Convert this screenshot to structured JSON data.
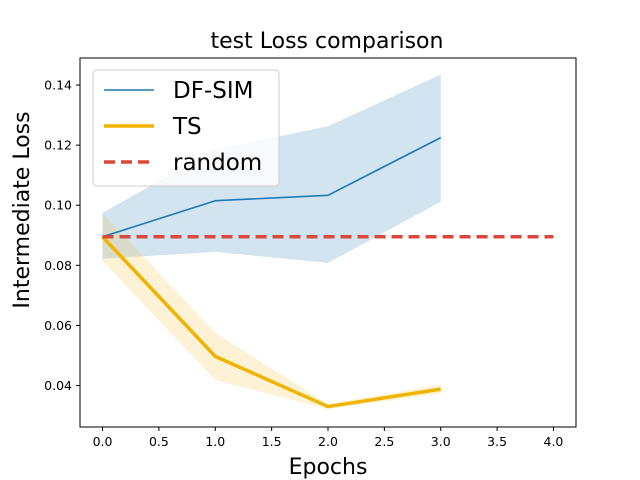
{
  "chart_data": {
    "type": "line",
    "title": "test Loss comparison",
    "xlabel": "Epochs",
    "ylabel": "Intermediate Loss",
    "xlim": [
      -0.2,
      4.2
    ],
    "ylim": [
      0.0262,
      0.149
    ],
    "x_ticks": [
      0.0,
      0.5,
      1.0,
      1.5,
      2.0,
      2.5,
      3.0,
      3.5,
      4.0
    ],
    "x_tick_labels": [
      "0.0",
      "0.5",
      "1.0",
      "1.5",
      "2.0",
      "2.5",
      "3.0",
      "3.5",
      "4.0"
    ],
    "y_ticks": [
      0.04,
      0.06,
      0.08,
      0.1,
      0.12,
      0.14
    ],
    "y_tick_labels": [
      "0.04",
      "0.06",
      "0.08",
      "0.10",
      "0.12",
      "0.14"
    ],
    "grid": false,
    "legend_position": "top-left",
    "series": [
      {
        "name": "DF-SIM",
        "color": "#1f77b4",
        "band_color": "#1f77b4",
        "style": "solid",
        "x": [
          0,
          1,
          2,
          3
        ],
        "values": [
          0.0895,
          0.1015,
          0.1033,
          0.1225
        ],
        "lower": [
          0.0822,
          0.0845,
          0.0808,
          0.1012
        ],
        "upper": [
          0.0975,
          0.1185,
          0.1263,
          0.1435
        ]
      },
      {
        "name": "TS",
        "color": "#f0b400",
        "band_color": "#f3bf33",
        "style": "solid-thick",
        "x": [
          0,
          1,
          2,
          3
        ],
        "values": [
          0.0895,
          0.0497,
          0.033,
          0.0388
        ],
        "lower": [
          0.0815,
          0.0418,
          0.0322,
          0.0373
        ],
        "upper": [
          0.0975,
          0.0575,
          0.0338,
          0.0403
        ]
      },
      {
        "name": "random",
        "color": "#d9483b",
        "style": "dashed",
        "x": [
          0,
          4
        ],
        "values": [
          0.0895,
          0.0895
        ]
      }
    ]
  }
}
